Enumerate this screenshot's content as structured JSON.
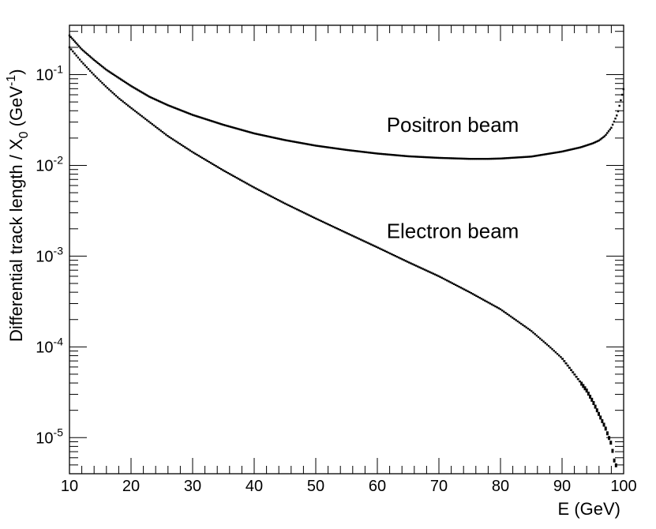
{
  "chart_data": {
    "type": "scatter",
    "title": "",
    "xlabel": "E (GeV)",
    "ylabel": {
      "main": "Differential track length / X",
      "sub": "0",
      "unit": " (GeV",
      "sup": "-1",
      "close": ")"
    },
    "xlim": [
      10,
      100
    ],
    "ylim": [
      4e-06,
      0.35
    ],
    "yscale": "log",
    "xticks": [
      10,
      20,
      30,
      40,
      50,
      60,
      70,
      80,
      90,
      100
    ],
    "yticks": [
      {
        "value": 0.1,
        "base": "10",
        "exp": "-1"
      },
      {
        "value": 0.01,
        "base": "10",
        "exp": "-2"
      },
      {
        "value": 0.001,
        "base": "10",
        "exp": "-3"
      },
      {
        "value": 0.0001,
        "base": "10",
        "exp": "-4"
      },
      {
        "value": 1e-05,
        "base": "10",
        "exp": "-5"
      }
    ],
    "grid": false,
    "annotations": [
      {
        "text": "Positron beam",
        "x": 61.5,
        "y": 0.028
      },
      {
        "text": "Electron beam",
        "x": 61.5,
        "y": 0.0019
      }
    ],
    "series": [
      {
        "x": [
          10,
          12,
          14,
          16,
          18,
          20,
          23,
          26,
          30,
          35,
          40,
          45,
          50,
          55,
          60,
          65,
          70,
          75,
          78,
          80,
          85,
          90,
          93,
          95,
          96,
          97,
          98,
          99,
          100
        ],
        "values": [
          0.27,
          0.19,
          0.145,
          0.113,
          0.092,
          0.075,
          0.057,
          0.046,
          0.036,
          0.028,
          0.0225,
          0.019,
          0.0165,
          0.0148,
          0.0135,
          0.0126,
          0.0121,
          0.0118,
          0.0118,
          0.0119,
          0.0125,
          0.0142,
          0.0158,
          0.0175,
          0.0188,
          0.0212,
          0.026,
          0.037,
          0.07
        ]
      },
      {
        "x": [
          10,
          12,
          14,
          16,
          18,
          20,
          23,
          26,
          30,
          35,
          40,
          45,
          50,
          55,
          60,
          65,
          70,
          75,
          80,
          85,
          88,
          90,
          92,
          94,
          95,
          96,
          97,
          98,
          98.5,
          99
        ],
        "values": [
          0.2,
          0.138,
          0.099,
          0.073,
          0.055,
          0.043,
          0.03,
          0.021,
          0.014,
          0.0088,
          0.0057,
          0.0038,
          0.0026,
          0.0018,
          0.00125,
          0.00086,
          0.0006,
          0.0004,
          0.00026,
          0.00015,
          0.0001,
          7.5e-05,
          5e-05,
          3.3e-05,
          2.5e-05,
          1.8e-05,
          1.3e-05,
          8.5e-06,
          5.5e-06,
          4.5e-06
        ]
      }
    ]
  }
}
